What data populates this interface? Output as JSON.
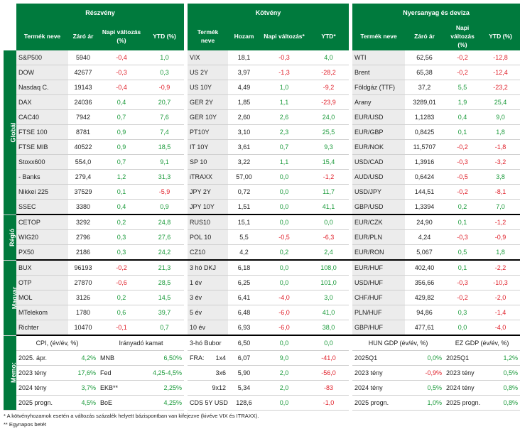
{
  "headers": {
    "reszveny": "Részvény",
    "kotveny": "Kötvény",
    "nyersanyag": "Nyersanyag és deviza"
  },
  "colheads": {
    "r": [
      "Termék neve",
      "Záró ár",
      "Napi változás (%)",
      "YTD (%)"
    ],
    "k": [
      "Termék neve",
      "Hozam",
      "Napi változás*",
      "YTD*"
    ],
    "n": [
      "Termék neve",
      "Záró ár",
      "Napi változás (%)",
      "YTD (%)"
    ]
  },
  "groups": [
    {
      "label": "Globál",
      "rows": [
        {
          "r": [
            "S&P500",
            "5940",
            "-0,4",
            "1,0"
          ],
          "k": [
            "VIX",
            "18,1",
            "-0,3",
            "4,0"
          ],
          "n": [
            "WTI",
            "62,56",
            "-0,2",
            "-12,8"
          ]
        },
        {
          "r": [
            "DOW",
            "42677",
            "-0,3",
            "0,3"
          ],
          "k": [
            "US 2Y",
            "3,97",
            "-1,3",
            "-28,2"
          ],
          "n": [
            "Brent",
            "65,38",
            "-0,2",
            "-12,4"
          ]
        },
        {
          "r": [
            "Nasdaq C.",
            "19143",
            "-0,4",
            "-0,9"
          ],
          "k": [
            "US 10Y",
            "4,49",
            "1,0",
            "-9,2"
          ],
          "n": [
            "Földgáz (TTF)",
            "37,2",
            "5,5",
            "-23,2"
          ]
        },
        {
          "r": [
            "DAX",
            "24036",
            "0,4",
            "20,7"
          ],
          "k": [
            "GER 2Y",
            "1,85",
            "1,1",
            "-23,9"
          ],
          "n": [
            "Arany",
            "3289,01",
            "1,9",
            "25,4"
          ]
        },
        {
          "r": [
            "CAC40",
            "7942",
            "0,7",
            "7,6"
          ],
          "k": [
            "GER 10Y",
            "2,60",
            "2,6",
            "24,0"
          ],
          "n": [
            "EUR/USD",
            "1,1283",
            "0,4",
            "9,0"
          ]
        },
        {
          "r": [
            "FTSE 100",
            "8781",
            "0,9",
            "7,4"
          ],
          "k": [
            "PT10Y",
            "3,10",
            "2,3",
            "25,5"
          ],
          "n": [
            "EUR/GBP",
            "0,8425",
            "0,1",
            "1,8"
          ]
        },
        {
          "r": [
            "FTSE MIB",
            "40522",
            "0,9",
            "18,5"
          ],
          "k": [
            "IT 10Y",
            "3,61",
            "0,7",
            "9,3"
          ],
          "n": [
            "EUR/NOK",
            "11,5707",
            "-0,2",
            "-1,8"
          ]
        },
        {
          "r": [
            "Stoxx600",
            "554,0",
            "0,7",
            "9,1"
          ],
          "k": [
            "SP 10",
            "3,22",
            "1,1",
            "15,4"
          ],
          "n": [
            "USD/CAD",
            "1,3916",
            "-0,3",
            "-3,2"
          ]
        },
        {
          "r": [
            "- Banks",
            "279,4",
            "1,2",
            "31,3"
          ],
          "k": [
            "iTRAXX",
            "57,00",
            "0,0",
            "-1,2"
          ],
          "n": [
            "AUD/USD",
            "0,6424",
            "-0,5",
            "3,8"
          ]
        },
        {
          "r": [
            "Nikkei 225",
            "37529",
            "0,1",
            "-5,9"
          ],
          "k": [
            "JPY 2Y",
            "0,72",
            "0,0",
            "11,7"
          ],
          "n": [
            "USD/JPY",
            "144,51",
            "-0,2",
            "-8,1"
          ]
        },
        {
          "r": [
            "SSEC",
            "3380",
            "0,4",
            "0,9"
          ],
          "k": [
            "JPY 10Y",
            "1,51",
            "0,0",
            "41,1"
          ],
          "n": [
            "GBP/USD",
            "1,3394",
            "0,2",
            "7,0"
          ]
        }
      ]
    },
    {
      "label": "Régió",
      "rows": [
        {
          "r": [
            "CETOP",
            "3292",
            "0,2",
            "24,8"
          ],
          "k": [
            "RUS10",
            "15,1",
            "0,0",
            "0,0"
          ],
          "n": [
            "EUR/CZK",
            "24,90",
            "0,1",
            "-1,2"
          ]
        },
        {
          "r": [
            "WIG20",
            "2796",
            "0,3",
            "27,6"
          ],
          "k": [
            "POL 10",
            "5,5",
            "-0,5",
            "-6,3"
          ],
          "n": [
            "EUR/PLN",
            "4,24",
            "-0,3",
            "-0,9"
          ]
        },
        {
          "r": [
            "PX50",
            "2186",
            "0,3",
            "24,2"
          ],
          "k": [
            "CZ10",
            "4,2",
            "0,2",
            "2,4"
          ],
          "n": [
            "EUR/RON",
            "5,067",
            "0,5",
            "1,8"
          ]
        }
      ]
    },
    {
      "label": "Magyar",
      "rows": [
        {
          "r": [
            "BUX",
            "96193",
            "-0,2",
            "21,3"
          ],
          "k": [
            "3 hó DKJ",
            "6,18",
            "0,0",
            "108,0"
          ],
          "n": [
            "EUR/HUF",
            "402,40",
            "0,1",
            "-2,2"
          ]
        },
        {
          "r": [
            "OTP",
            "27870",
            "-0,6",
            "28,5"
          ],
          "k": [
            "1 év",
            "6,25",
            "0,0",
            "101,0"
          ],
          "n": [
            "USD/HUF",
            "356,66",
            "-0,3",
            "-10,3"
          ]
        },
        {
          "r": [
            "MOL",
            "3126",
            "0,2",
            "14,5"
          ],
          "k": [
            "3 év",
            "6,41",
            "-4,0",
            "3,0"
          ],
          "n": [
            "CHF/HUF",
            "429,82",
            "-0,2",
            "-2,0"
          ]
        },
        {
          "r": [
            "MTelekom",
            "1780",
            "0,6",
            "39,7"
          ],
          "k": [
            "5 év",
            "6,48",
            "-6,0",
            "41,0"
          ],
          "n": [
            "PLN/HUF",
            "94,86",
            "0,3",
            "-1,4"
          ]
        },
        {
          "r": [
            "Richter",
            "10470",
            "-0,1",
            "0,7"
          ],
          "k": [
            "10 év",
            "6,93",
            "-6,0",
            "38,0"
          ],
          "n": [
            "GBP/HUF",
            "477,61",
            "0,0",
            "-4,0"
          ]
        }
      ]
    }
  ],
  "memo": {
    "label": "Memo:",
    "rows": [
      {
        "c1": [
          "CPI, (év/év, %)",
          ""
        ],
        "c2": [
          "Irányadó kamat",
          ""
        ],
        "c3": [
          "3-hó Bubor",
          "",
          "6,50",
          "0,0",
          "0,0"
        ],
        "c4": [
          "HUN GDP (év/év, %)",
          ""
        ],
        "c5": [
          "EZ GDP (év/év, %)",
          ""
        ]
      },
      {
        "c1": [
          "2025. ápr.",
          "4,2%"
        ],
        "c2": [
          "MNB",
          "6,50%"
        ],
        "c3": [
          "FRA:",
          "1x4",
          "6,07",
          "9,0",
          "-41,0"
        ],
        "c4": [
          "2025Q1",
          "0,0%"
        ],
        "c5": [
          "2025Q1",
          "1,2%"
        ]
      },
      {
        "c1": [
          "2023 tény",
          "17,6%"
        ],
        "c2": [
          "Fed",
          "4,25-4,5%"
        ],
        "c3": [
          "",
          "3x6",
          "5,90",
          "2,0",
          "-56,0"
        ],
        "c4": [
          "2023 tény",
          "-0,9%"
        ],
        "c5": [
          "2023 tény",
          "0,5%"
        ]
      },
      {
        "c1": [
          "2024 tény",
          "3,7%"
        ],
        "c2": [
          "EKB**",
          "2,25%"
        ],
        "c3": [
          "",
          "9x12",
          "5,34",
          "2,0",
          "-83"
        ],
        "c4": [
          "2024 tény",
          "0,5%"
        ],
        "c5": [
          "2024 tény",
          "0,8%"
        ]
      },
      {
        "c1": [
          "2025 progn.",
          "4,5%"
        ],
        "c2": [
          "BoE",
          "4,25%"
        ],
        "c3": [
          "CDS 5Y USD",
          "",
          "128,6",
          "0,0",
          "-1,0"
        ],
        "c4": [
          "2025 progn.",
          "1,0%"
        ],
        "c5": [
          "2025 progn.",
          "0,8%"
        ]
      }
    ]
  },
  "footnotes": [
    "* A kötvényhozamok esetén a változás százalék helyett bázispontban van kifejezve (kivéve VIX és ITRAXX).",
    "** Egynapos betét"
  ],
  "colors": {
    "green": "#007a3d",
    "positive": "#1a9a3a",
    "negative": "#e0202a"
  }
}
